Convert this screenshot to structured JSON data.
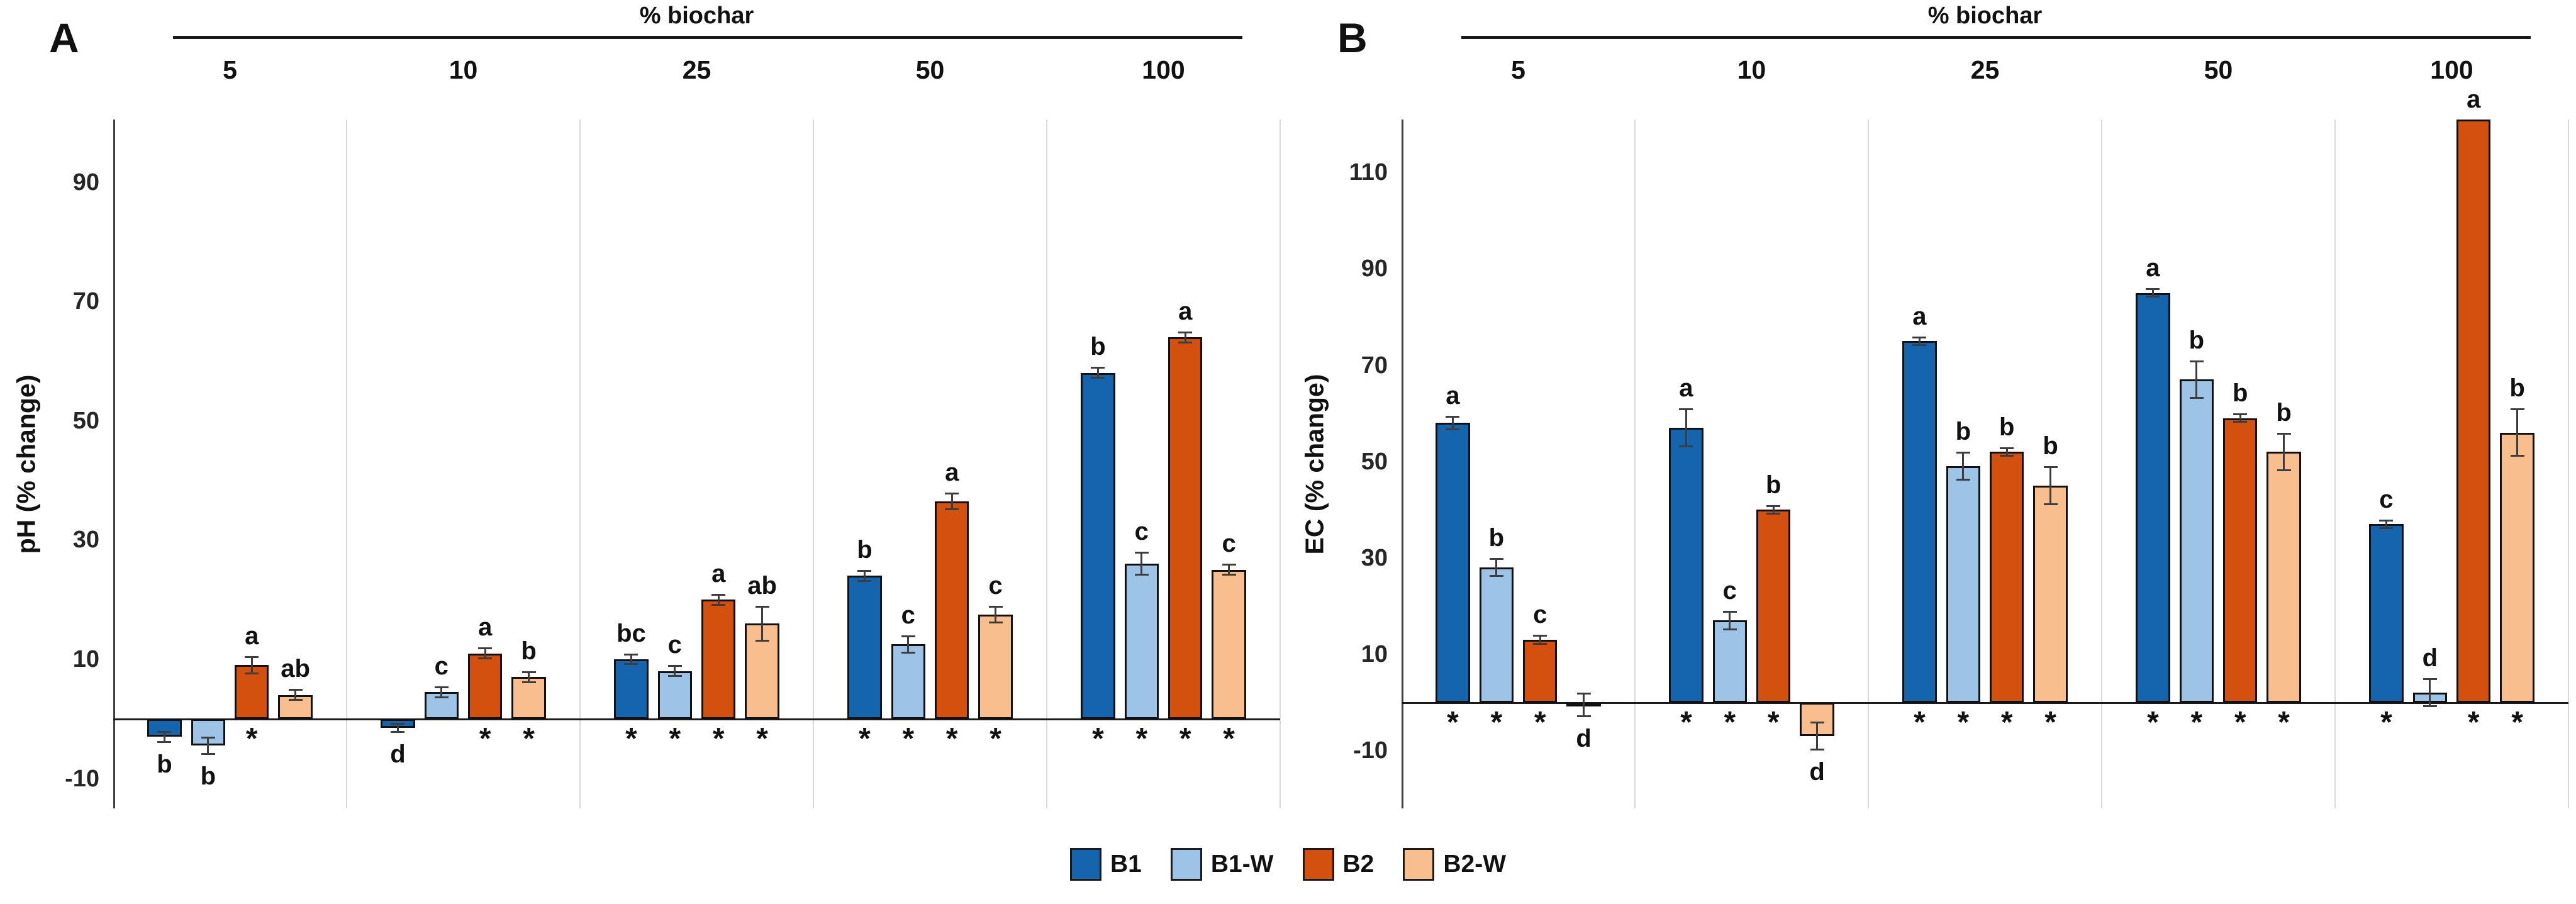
{
  "legend": {
    "items": [
      {
        "label": "B1",
        "color": "#1565AE"
      },
      {
        "label": "B1-W",
        "color": "#9DC3E6"
      },
      {
        "label": "B2",
        "color": "#D3500E"
      },
      {
        "label": "B2-W",
        "color": "#F8BE8E"
      }
    ]
  },
  "chart_data": [
    {
      "type": "bar",
      "panel_label": "A",
      "group_axis_title": "% biochar",
      "ylabel": "pH (% change)",
      "categories": [
        "5",
        "10",
        "25",
        "50",
        "100"
      ],
      "yticks": [
        90,
        70,
        50,
        30,
        10,
        -10
      ],
      "ylim": [
        -15,
        100.5
      ],
      "grid": "vertical-group-separators",
      "legend_position": "bottom-shared",
      "series_names": [
        "B1",
        "B1-W",
        "B2",
        "B2-W"
      ],
      "groups": [
        {
          "category": "5",
          "bars": [
            {
              "series": "B1",
              "value": -3,
              "error": 1,
              "letter": "b",
              "letter_side": "below",
              "significant": false
            },
            {
              "series": "B1-W",
              "value": -4.5,
              "error": 1.5,
              "letter": "b",
              "letter_side": "below",
              "significant": false
            },
            {
              "series": "B2",
              "value": 9,
              "error": 1.5,
              "letter": "a",
              "letter_side": "above",
              "significant": true
            },
            {
              "series": "B2-W",
              "value": 4,
              "error": 1,
              "letter": "ab",
              "letter_side": "above",
              "significant": false
            }
          ]
        },
        {
          "category": "10",
          "bars": [
            {
              "series": "B1",
              "value": -1.5,
              "error": 0.8,
              "letter": "d",
              "letter_side": "below",
              "significant": false
            },
            {
              "series": "B1-W",
              "value": 4.5,
              "error": 1,
              "letter": "c",
              "letter_side": "above",
              "significant": false
            },
            {
              "series": "B2",
              "value": 11,
              "error": 1,
              "letter": "a",
              "letter_side": "above",
              "significant": true
            },
            {
              "series": "B2-W",
              "value": 7,
              "error": 1,
              "letter": "b",
              "letter_side": "above",
              "significant": true
            }
          ]
        },
        {
          "category": "25",
          "bars": [
            {
              "series": "B1",
              "value": 10,
              "error": 1,
              "letter": "bc",
              "letter_side": "above",
              "significant": true
            },
            {
              "series": "B1-W",
              "value": 8,
              "error": 1,
              "letter": "c",
              "letter_side": "above",
              "significant": true
            },
            {
              "series": "B2",
              "value": 20,
              "error": 1,
              "letter": "a",
              "letter_side": "above",
              "significant": true
            },
            {
              "series": "B2-W",
              "value": 16,
              "error": 3,
              "letter": "ab",
              "letter_side": "above",
              "significant": true
            }
          ]
        },
        {
          "category": "50",
          "bars": [
            {
              "series": "B1",
              "value": 24,
              "error": 1,
              "letter": "b",
              "letter_side": "above",
              "significant": true
            },
            {
              "series": "B1-W",
              "value": 12.5,
              "error": 1.5,
              "letter": "c",
              "letter_side": "above",
              "significant": true
            },
            {
              "series": "B2",
              "value": 36.5,
              "error": 1.5,
              "letter": "a",
              "letter_side": "above",
              "significant": true
            },
            {
              "series": "B2-W",
              "value": 17.5,
              "error": 1.5,
              "letter": "c",
              "letter_side": "above",
              "significant": true
            }
          ]
        },
        {
          "category": "100",
          "bars": [
            {
              "series": "B1",
              "value": 58,
              "error": 1,
              "letter": "b",
              "letter_side": "above",
              "significant": true
            },
            {
              "series": "B1-W",
              "value": 26,
              "error": 2,
              "letter": "c",
              "letter_side": "above",
              "significant": true
            },
            {
              "series": "B2",
              "value": 64,
              "error": 1,
              "letter": "a",
              "letter_side": "above",
              "significant": true
            },
            {
              "series": "B2-W",
              "value": 25,
              "error": 1,
              "letter": "c",
              "letter_side": "above",
              "significant": true
            }
          ]
        }
      ]
    },
    {
      "type": "bar",
      "panel_label": "B",
      "group_axis_title": "% biochar",
      "ylabel": "EC (% change)",
      "categories": [
        "5",
        "10",
        "25",
        "50",
        "100"
      ],
      "yticks": [
        110,
        90,
        70,
        50,
        30,
        10,
        -10
      ],
      "ylim": [
        -22,
        121
      ],
      "grid": "vertical-group-separators",
      "legend_position": "bottom-shared",
      "series_names": [
        "B1",
        "B1-W",
        "B2",
        "B2-W"
      ],
      "groups": [
        {
          "category": "5",
          "bars": [
            {
              "series": "B1",
              "value": 58,
              "error": 1.5,
              "letter": "a",
              "letter_side": "above",
              "significant": true
            },
            {
              "series": "B1-W",
              "value": 28,
              "error": 2,
              "letter": "b",
              "letter_side": "above",
              "significant": true
            },
            {
              "series": "B2",
              "value": 13,
              "error": 1,
              "letter": "c",
              "letter_side": "above",
              "significant": true
            },
            {
              "series": "B2-W",
              "value": -0.5,
              "error": 2.5,
              "letter": "d",
              "letter_side": "below",
              "significant": false
            }
          ]
        },
        {
          "category": "10",
          "bars": [
            {
              "series": "B1",
              "value": 57,
              "error": 4,
              "letter": "a",
              "letter_side": "above",
              "significant": true
            },
            {
              "series": "B1-W",
              "value": 17,
              "error": 2,
              "letter": "c",
              "letter_side": "above",
              "significant": true
            },
            {
              "series": "B2",
              "value": 40,
              "error": 1,
              "letter": "b",
              "letter_side": "above",
              "significant": true
            },
            {
              "series": "B2-W",
              "value": -7,
              "error": 3,
              "letter": "d",
              "letter_side": "below",
              "significant": false
            }
          ]
        },
        {
          "category": "25",
          "bars": [
            {
              "series": "B1",
              "value": 75,
              "error": 1,
              "letter": "a",
              "letter_side": "above",
              "significant": true
            },
            {
              "series": "B1-W",
              "value": 49,
              "error": 3,
              "letter": "b",
              "letter_side": "above",
              "significant": true
            },
            {
              "series": "B2",
              "value": 52,
              "error": 1,
              "letter": "b",
              "letter_side": "above",
              "significant": true
            },
            {
              "series": "B2-W",
              "value": 45,
              "error": 4,
              "letter": "b",
              "letter_side": "above",
              "significant": true
            }
          ]
        },
        {
          "category": "50",
          "bars": [
            {
              "series": "B1",
              "value": 85,
              "error": 1,
              "letter": "a",
              "letter_side": "above",
              "significant": true
            },
            {
              "series": "B1-W",
              "value": 67,
              "error": 4,
              "letter": "b",
              "letter_side": "above",
              "significant": true
            },
            {
              "series": "B2",
              "value": 59,
              "error": 1,
              "letter": "b",
              "letter_side": "above",
              "significant": true
            },
            {
              "series": "B2-W",
              "value": 52,
              "error": 4,
              "letter": "b",
              "letter_side": "above",
              "significant": true
            }
          ]
        },
        {
          "category": "100",
          "bars": [
            {
              "series": "B1",
              "value": 37,
              "error": 1,
              "letter": "c",
              "letter_side": "above",
              "significant": true
            },
            {
              "series": "B1-W",
              "value": 2,
              "error": 3,
              "letter": "d",
              "letter_side": "above",
              "significant": false
            },
            {
              "series": "B2",
              "value": 121,
              "error": 0,
              "letter": "a",
              "letter_side": "above",
              "significant": true
            },
            {
              "series": "B2-W",
              "value": 56,
              "error": 5,
              "letter": "b",
              "letter_side": "above",
              "significant": true
            }
          ]
        }
      ]
    }
  ]
}
